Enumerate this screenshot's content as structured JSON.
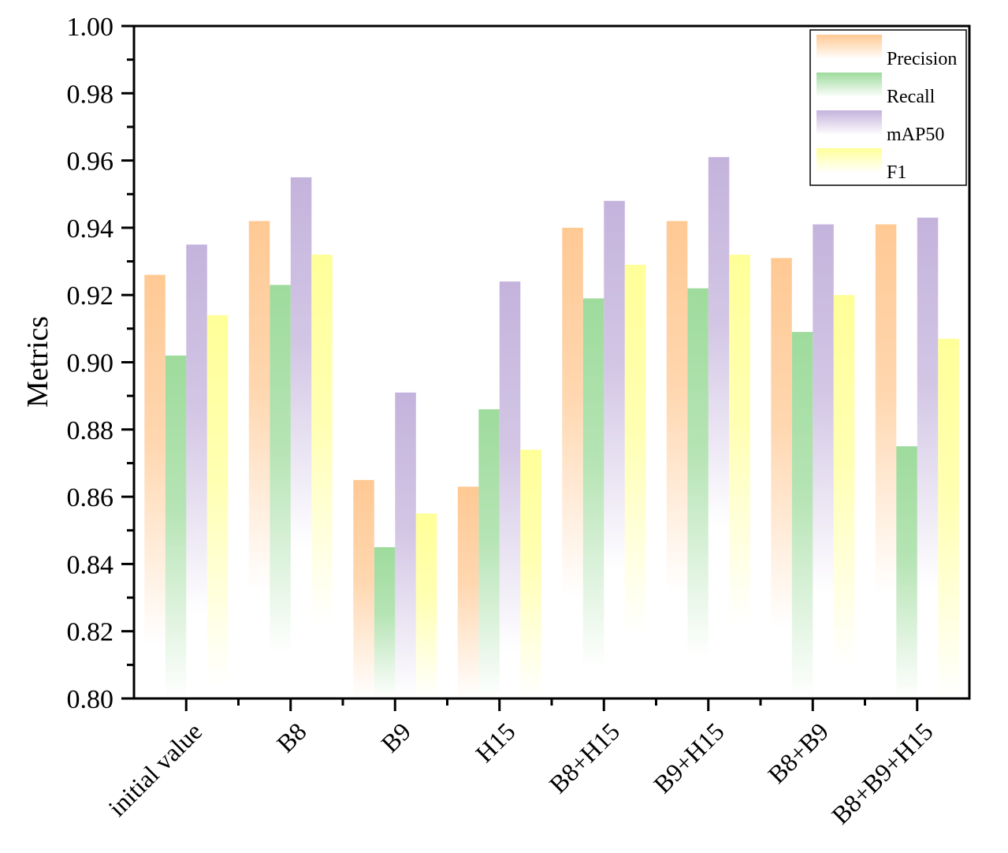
{
  "chart_data": {
    "type": "bar",
    "title": "",
    "xlabel": "",
    "ylabel": "Metrics",
    "ylim": [
      0.8,
      1.0
    ],
    "yticks": [
      "0.80",
      "0.82",
      "0.84",
      "0.86",
      "0.88",
      "0.90",
      "0.92",
      "0.94",
      "0.96",
      "0.98",
      "1.00"
    ],
    "grid": false,
    "legend_position": "top-right",
    "categories": [
      "initial value",
      "B8",
      "B9",
      "H15",
      "B8+H15",
      "B9+H15",
      "B8+B9",
      "B8+B9+H15"
    ],
    "series": [
      {
        "name": "Precision",
        "color": "#ffc994",
        "values": [
          0.926,
          0.942,
          0.865,
          0.863,
          0.94,
          0.942,
          0.931,
          0.941
        ]
      },
      {
        "name": "Recall",
        "color": "#9edb9c",
        "values": [
          0.902,
          0.923,
          0.845,
          0.886,
          0.919,
          0.922,
          0.909,
          0.875
        ]
      },
      {
        "name": "mAP50",
        "color": "#c4b3dc",
        "values": [
          0.935,
          0.955,
          0.891,
          0.924,
          0.948,
          0.961,
          0.941,
          0.943
        ]
      },
      {
        "name": "F1",
        "color": "#ffff99",
        "values": [
          0.914,
          0.932,
          0.855,
          0.874,
          0.929,
          0.932,
          0.92,
          0.907
        ]
      }
    ]
  }
}
